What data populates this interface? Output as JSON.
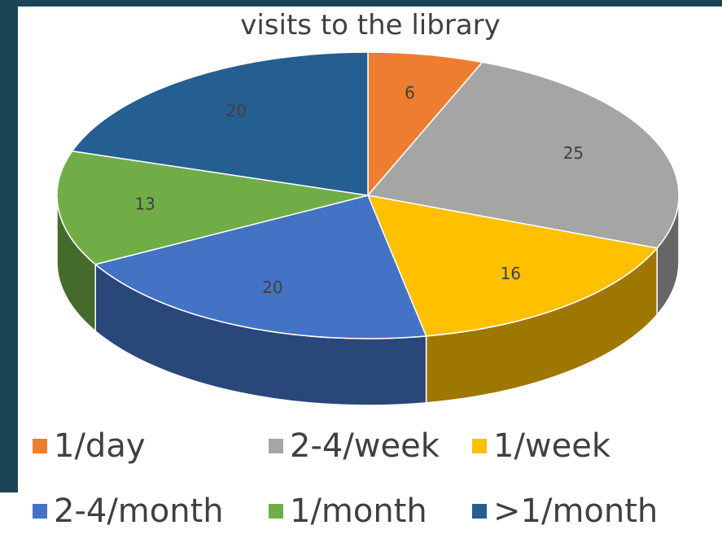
{
  "chart_data": {
    "type": "pie3d",
    "title": "visits to the library",
    "categories": [
      "1/day",
      "2-4/week",
      "1/week",
      "2-4/month",
      "1/month",
      ">1/month"
    ],
    "values": [
      6,
      25,
      16,
      20,
      13,
      20
    ],
    "colors": [
      "#ed7d31",
      "#a5a5a5",
      "#ffc000",
      "#4472c4",
      "#70ad47",
      "#255e91"
    ],
    "legend": "bottom"
  }
}
